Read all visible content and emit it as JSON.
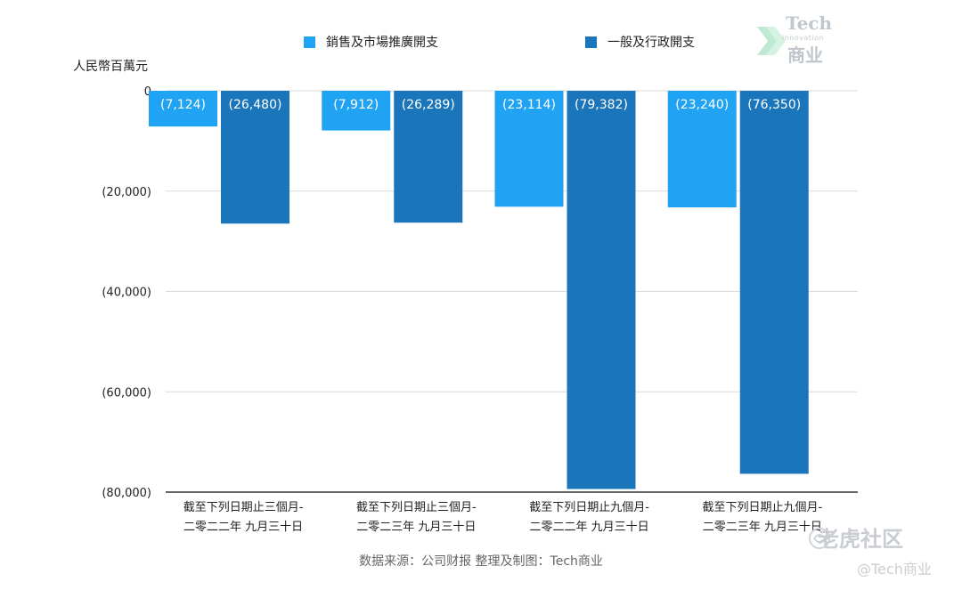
{
  "chart_data": {
    "type": "bar",
    "ylabel": "人民幣百萬元",
    "ylim": [
      -80000,
      0
    ],
    "yticks": [
      {
        "value": 0,
        "label": "0"
      },
      {
        "value": -20000,
        "label": "(20,000)"
      },
      {
        "value": -40000,
        "label": "(40,000)"
      },
      {
        "value": -60000,
        "label": "(60,000)"
      },
      {
        "value": -80000,
        "label": "(80,000)"
      }
    ],
    "categories": [
      {
        "line1": "截至下列日期止三個月-",
        "line2": "二零二二年 九月三十日"
      },
      {
        "line1": "截至下列日期止三個月-",
        "line2": "二零二三年 九月三十日"
      },
      {
        "line1": "截至下列日期止九個月-",
        "line2": "二零二二年 九月三十日"
      },
      {
        "line1": "截至下列日期止九個月-",
        "line2": "二零二三年 九月三十日"
      }
    ],
    "series": [
      {
        "name": "銷售及市場推廣開支",
        "color": "#21a3f4",
        "values": [
          -7124,
          -7912,
          -23114,
          -23240
        ],
        "labels": [
          "(7,124)",
          "(7,912)",
          "(23,114)",
          "(23,240)"
        ]
      },
      {
        "name": "一般及行政開支",
        "color": "#1a75bb",
        "values": [
          -26480,
          -26289,
          -79382,
          -76350
        ],
        "labels": [
          "(26,480)",
          "(26,289)",
          "(79,382)",
          "(76,350)"
        ]
      }
    ],
    "grid": true,
    "legend_position": "top"
  },
  "logo": {
    "top": "Tech",
    "middle": "innovation",
    "bottom": "商业"
  },
  "source_note": "数据来源：公司财报 整理及制图：Tech商业",
  "watermark": {
    "main": "老虎社区",
    "sub": "@Tech商业"
  }
}
